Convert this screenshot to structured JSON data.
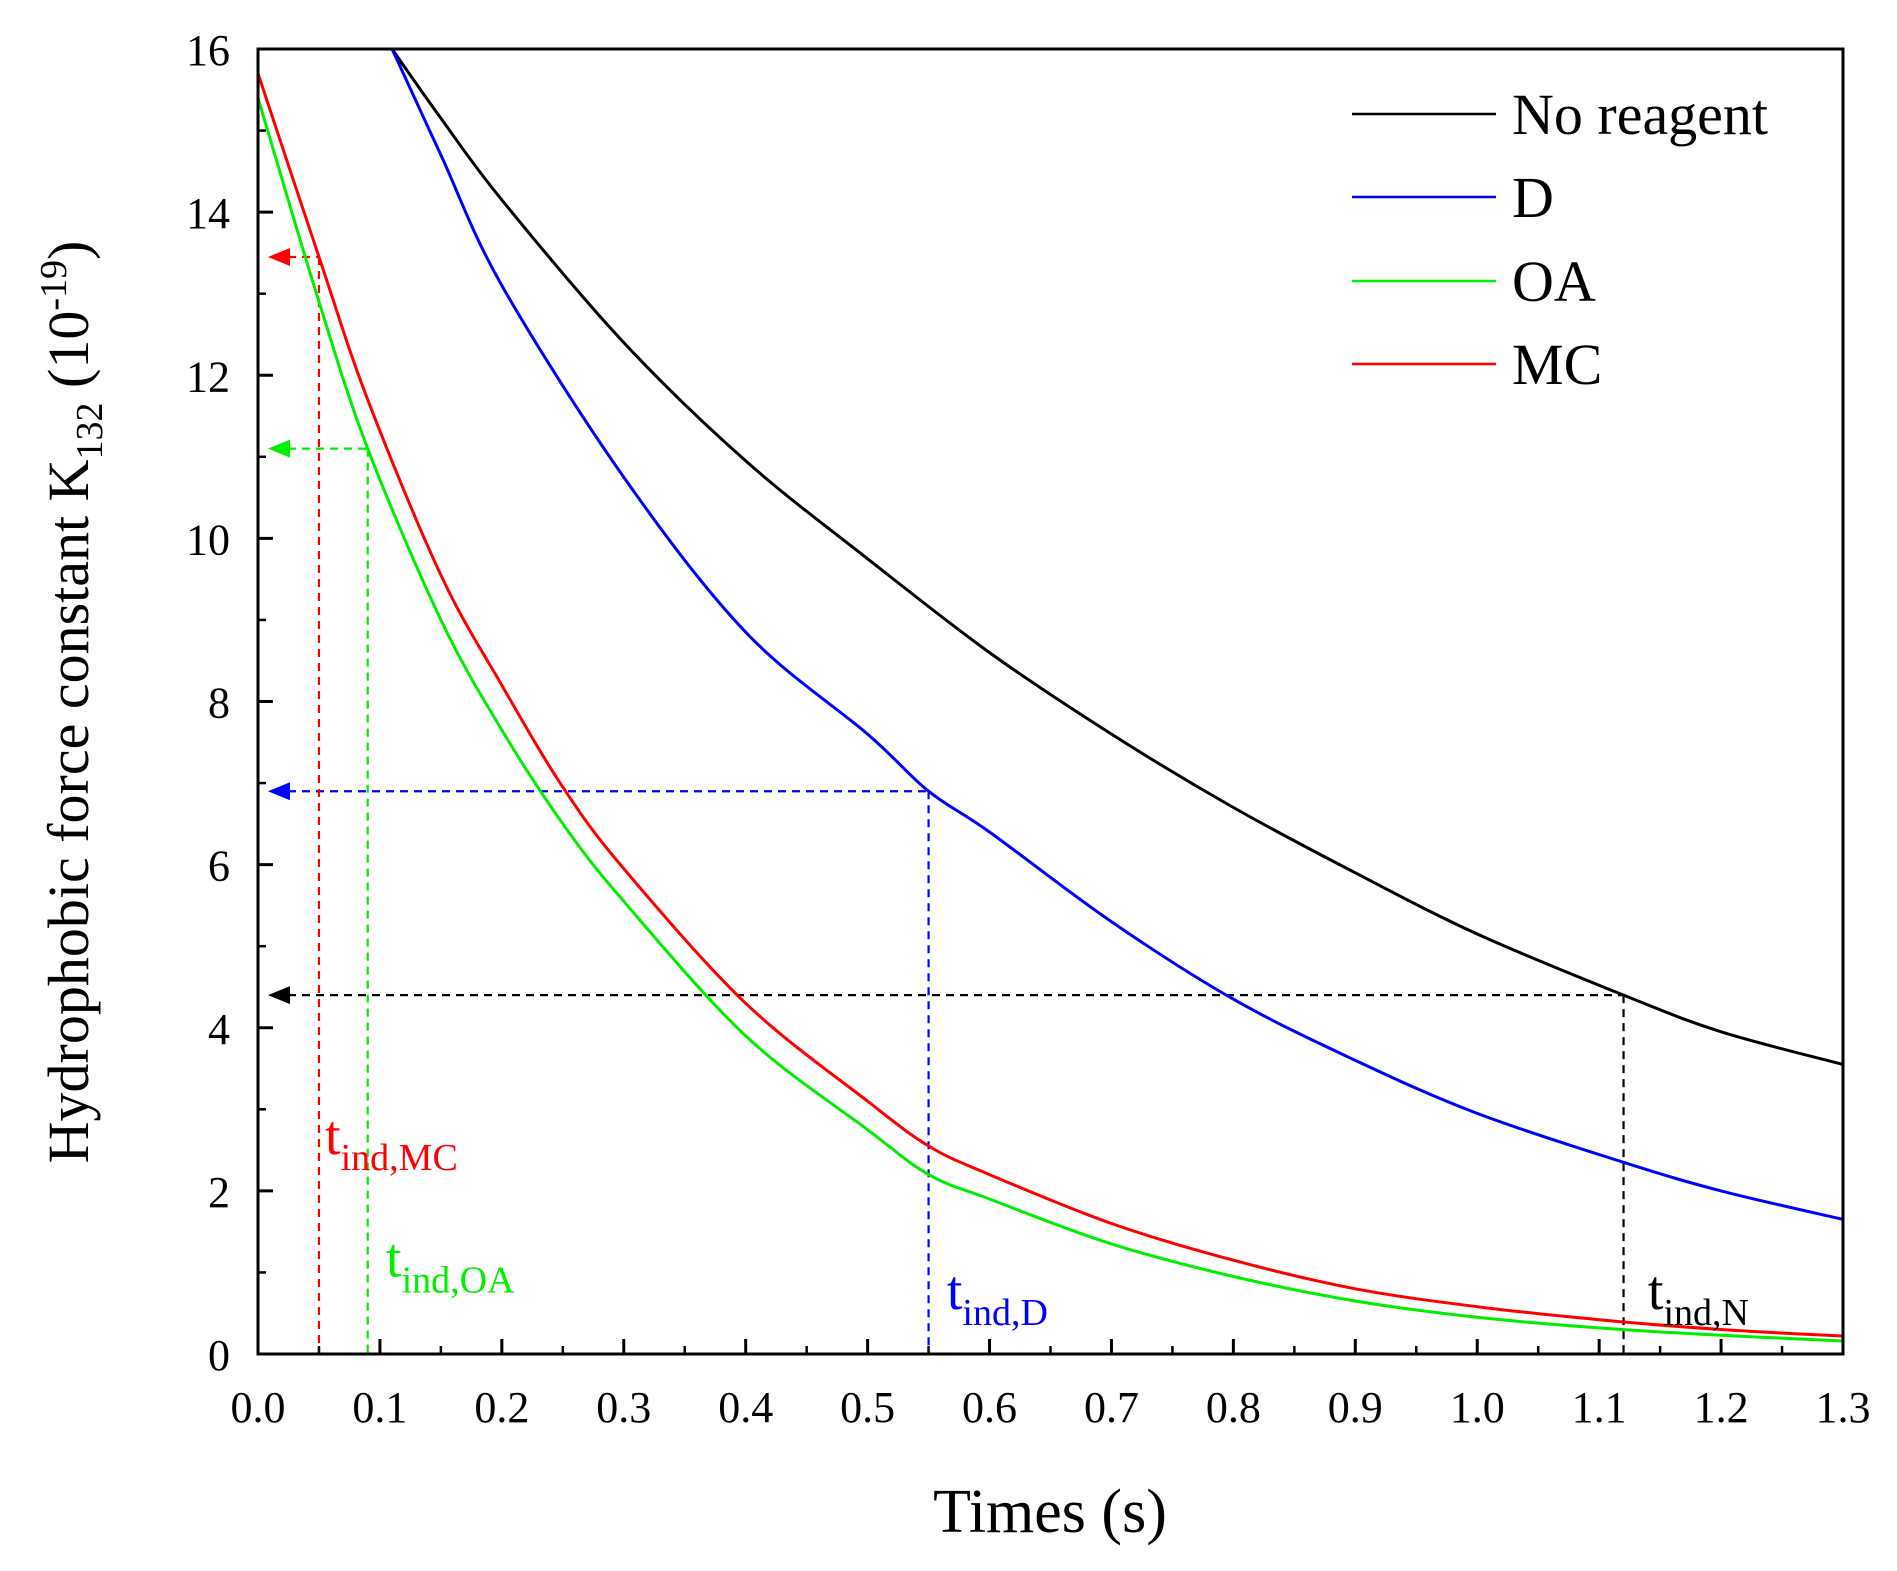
{
  "chart_data": {
    "type": "line",
    "xlabel": "Times (s)",
    "ylabel_main": "Hydrophobic force constant K",
    "ylabel_sub": "132",
    "ylabel_unit_open": " (10",
    "ylabel_unit_sup": "-19",
    "ylabel_unit_close": ")",
    "xlim": [
      0,
      1.3
    ],
    "ylim": [
      0,
      16
    ],
    "x_ticks": [
      "0.0",
      "0.1",
      "0.2",
      "0.3",
      "0.4",
      "0.5",
      "0.6",
      "0.7",
      "0.8",
      "0.9",
      "1.0",
      "1.1",
      "1.2",
      "1.3"
    ],
    "x_tick_values": [
      0,
      0.1,
      0.2,
      0.3,
      0.4,
      0.5,
      0.6,
      0.7,
      0.8,
      0.9,
      1.0,
      1.1,
      1.2,
      1.3
    ],
    "y_ticks": [
      "0",
      "2",
      "4",
      "6",
      "8",
      "10",
      "12",
      "14",
      "16"
    ],
    "y_tick_values": [
      0,
      2,
      4,
      6,
      8,
      10,
      12,
      14,
      16
    ],
    "legend_position": "top-right",
    "series": [
      {
        "name": "No reagent",
        "color": "#000000",
        "x": [
          0.11,
          0.15,
          0.2,
          0.3,
          0.4,
          0.5,
          0.6,
          0.7,
          0.8,
          0.9,
          1.0,
          1.12,
          1.2,
          1.3
        ],
        "y": [
          16.0,
          15.15,
          14.15,
          12.4,
          10.95,
          9.75,
          8.6,
          7.6,
          6.7,
          5.9,
          5.15,
          4.4,
          3.95,
          3.55
        ]
      },
      {
        "name": "D",
        "color": "#0000ff",
        "x": [
          0.11,
          0.15,
          0.2,
          0.3,
          0.4,
          0.5,
          0.55,
          0.6,
          0.7,
          0.8,
          0.9,
          1.0,
          1.12,
          1.2,
          1.3
        ],
        "y": [
          16.0,
          14.7,
          13.1,
          10.75,
          8.85,
          7.6,
          6.9,
          6.4,
          5.3,
          4.35,
          3.6,
          2.95,
          2.35,
          2.0,
          1.65
        ]
      },
      {
        "name": "OA",
        "color": "#00ee00",
        "x": [
          0.0,
          0.05,
          0.09,
          0.15,
          0.2,
          0.25,
          0.3,
          0.4,
          0.5,
          0.55,
          0.6,
          0.7,
          0.8,
          0.9,
          1.0,
          1.1,
          1.2,
          1.3
        ],
        "y": [
          15.4,
          12.9,
          11.1,
          9.0,
          7.65,
          6.5,
          5.55,
          3.9,
          2.75,
          2.2,
          1.9,
          1.35,
          0.95,
          0.65,
          0.45,
          0.32,
          0.23,
          0.16
        ]
      },
      {
        "name": "MC",
        "color": "#ff0000",
        "x": [
          0.0,
          0.05,
          0.09,
          0.15,
          0.2,
          0.25,
          0.3,
          0.4,
          0.5,
          0.55,
          0.6,
          0.7,
          0.8,
          0.9,
          1.0,
          1.1,
          1.2,
          1.3
        ],
        "y": [
          15.7,
          13.45,
          11.7,
          9.55,
          8.2,
          6.95,
          5.95,
          4.3,
          3.1,
          2.55,
          2.2,
          1.6,
          1.15,
          0.8,
          0.58,
          0.42,
          0.3,
          0.22
        ]
      }
    ],
    "guides": [
      {
        "name": "guide-no-reagent",
        "color": "#000000",
        "x": 1.12,
        "y": 4.4,
        "label": "t",
        "label_sub": "ind,N",
        "label_anchor_x": 1.14,
        "label_anchor_y": 0.55
      },
      {
        "name": "guide-d",
        "color": "#0000ff",
        "x": 0.55,
        "y": 6.9,
        "label": "t",
        "label_sub": "ind,D",
        "label_anchor_x": 0.565,
        "label_anchor_y": 0.55
      },
      {
        "name": "guide-oa",
        "color": "#00ee00",
        "x": 0.09,
        "y": 11.1,
        "label": "t",
        "label_sub": "ind,OA",
        "label_anchor_x": 0.105,
        "label_anchor_y": 0.95
      },
      {
        "name": "guide-mc",
        "color": "#ff0000",
        "x": 0.05,
        "y": 13.45,
        "label": "t",
        "label_sub": "ind,MC",
        "label_anchor_x": 0.055,
        "label_anchor_y": 2.45
      }
    ]
  }
}
